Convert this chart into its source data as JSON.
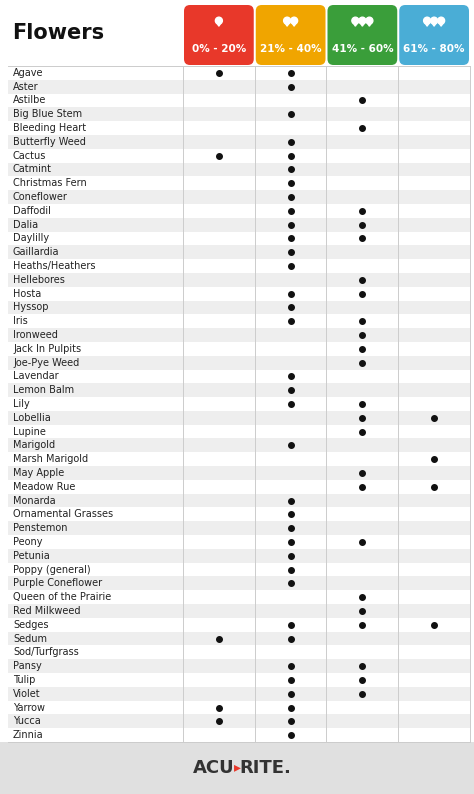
{
  "title": "Flowers",
  "columns": [
    "0% - 20%",
    "21% - 40%",
    "41% - 60%",
    "61% - 80%"
  ],
  "col_colors": [
    "#e8382a",
    "#f0a500",
    "#3a9e3a",
    "#4aadd6"
  ],
  "flowers": [
    "Agave",
    "Aster",
    "Astilbe",
    "Big Blue Stem",
    "Bleeding Heart",
    "Butterfly Weed",
    "Cactus",
    "Catmint",
    "Christmas Fern",
    "Coneflower",
    "Daffodil",
    "Dalia",
    "Daylilly",
    "Gaillardia",
    "Heaths/Heathers",
    "Hellebores",
    "Hosta",
    "Hyssop",
    "Iris",
    "Ironweed",
    "Jack In Pulpits",
    "Joe-Pye Weed",
    "Lavendar",
    "Lemon Balm",
    "Lily",
    "Lobellia",
    "Lupine",
    "Marigold",
    "Marsh Marigold",
    "May Apple",
    "Meadow Rue",
    "Monarda",
    "Ornamental Grasses",
    "Penstemon",
    "Peony",
    "Petunia",
    "Poppy (general)",
    "Purple Coneflower",
    "Queen of the Prairie",
    "Red Milkweed",
    "Sedges",
    "Sedum",
    "Sod/Turfgrass",
    "Pansy",
    "Tulip",
    "Violet",
    "Yarrow",
    "Yucca",
    "Zinnia"
  ],
  "dots": {
    "Agave": [
      1,
      1,
      0,
      0
    ],
    "Aster": [
      0,
      1,
      0,
      0
    ],
    "Astilbe": [
      0,
      0,
      1,
      0
    ],
    "Big Blue Stem": [
      0,
      1,
      0,
      0
    ],
    "Bleeding Heart": [
      0,
      0,
      1,
      0
    ],
    "Butterfly Weed": [
      0,
      1,
      0,
      0
    ],
    "Cactus": [
      1,
      1,
      0,
      0
    ],
    "Catmint": [
      0,
      1,
      0,
      0
    ],
    "Christmas Fern": [
      0,
      1,
      0,
      0
    ],
    "Coneflower": [
      0,
      1,
      0,
      0
    ],
    "Daffodil": [
      0,
      1,
      1,
      0
    ],
    "Dalia": [
      0,
      1,
      1,
      0
    ],
    "Daylilly": [
      0,
      1,
      1,
      0
    ],
    "Gaillardia": [
      0,
      1,
      0,
      0
    ],
    "Heaths/Heathers": [
      0,
      1,
      0,
      0
    ],
    "Hellebores": [
      0,
      0,
      1,
      0
    ],
    "Hosta": [
      0,
      1,
      1,
      0
    ],
    "Hyssop": [
      0,
      1,
      0,
      0
    ],
    "Iris": [
      0,
      1,
      1,
      0
    ],
    "Ironweed": [
      0,
      0,
      1,
      0
    ],
    "Jack In Pulpits": [
      0,
      0,
      1,
      0
    ],
    "Joe-Pye Weed": [
      0,
      0,
      1,
      0
    ],
    "Lavendar": [
      0,
      1,
      0,
      0
    ],
    "Lemon Balm": [
      0,
      1,
      0,
      0
    ],
    "Lily": [
      0,
      1,
      1,
      0
    ],
    "Lobellia": [
      0,
      0,
      1,
      1
    ],
    "Lupine": [
      0,
      0,
      1,
      0
    ],
    "Marigold": [
      0,
      1,
      0,
      0
    ],
    "Marsh Marigold": [
      0,
      0,
      0,
      1
    ],
    "May Apple": [
      0,
      0,
      1,
      0
    ],
    "Meadow Rue": [
      0,
      0,
      1,
      1
    ],
    "Monarda": [
      0,
      1,
      0,
      0
    ],
    "Ornamental Grasses": [
      0,
      1,
      0,
      0
    ],
    "Penstemon": [
      0,
      1,
      0,
      0
    ],
    "Peony": [
      0,
      1,
      1,
      0
    ],
    "Petunia": [
      0,
      1,
      0,
      0
    ],
    "Poppy (general)": [
      0,
      1,
      0,
      0
    ],
    "Purple Coneflower": [
      0,
      1,
      0,
      0
    ],
    "Queen of the Prairie": [
      0,
      0,
      1,
      0
    ],
    "Red Milkweed": [
      0,
      0,
      1,
      0
    ],
    "Sedges": [
      0,
      1,
      1,
      1
    ],
    "Sedum": [
      1,
      1,
      0,
      0
    ],
    "Sod/Turfgrass": [
      0,
      0,
      0,
      0
    ],
    "Pansy": [
      0,
      1,
      1,
      0
    ],
    "Tulip": [
      0,
      1,
      1,
      0
    ],
    "Violet": [
      0,
      1,
      1,
      0
    ],
    "Yarrow": [
      1,
      1,
      0,
      0
    ],
    "Yucca": [
      1,
      1,
      0,
      0
    ],
    "Zinnia": [
      0,
      1,
      0,
      0
    ]
  },
  "bg_color": "#ffffff",
  "row_alt_color": "#eeeeee",
  "dot_color": "#111111",
  "text_color": "#222222",
  "header_text_color": "#ffffff",
  "footer_bg": "#e0e0e0",
  "acurite_color": "#333333",
  "acurite_red": "#e8382a",
  "drop_counts": [
    1,
    2,
    3,
    3
  ]
}
